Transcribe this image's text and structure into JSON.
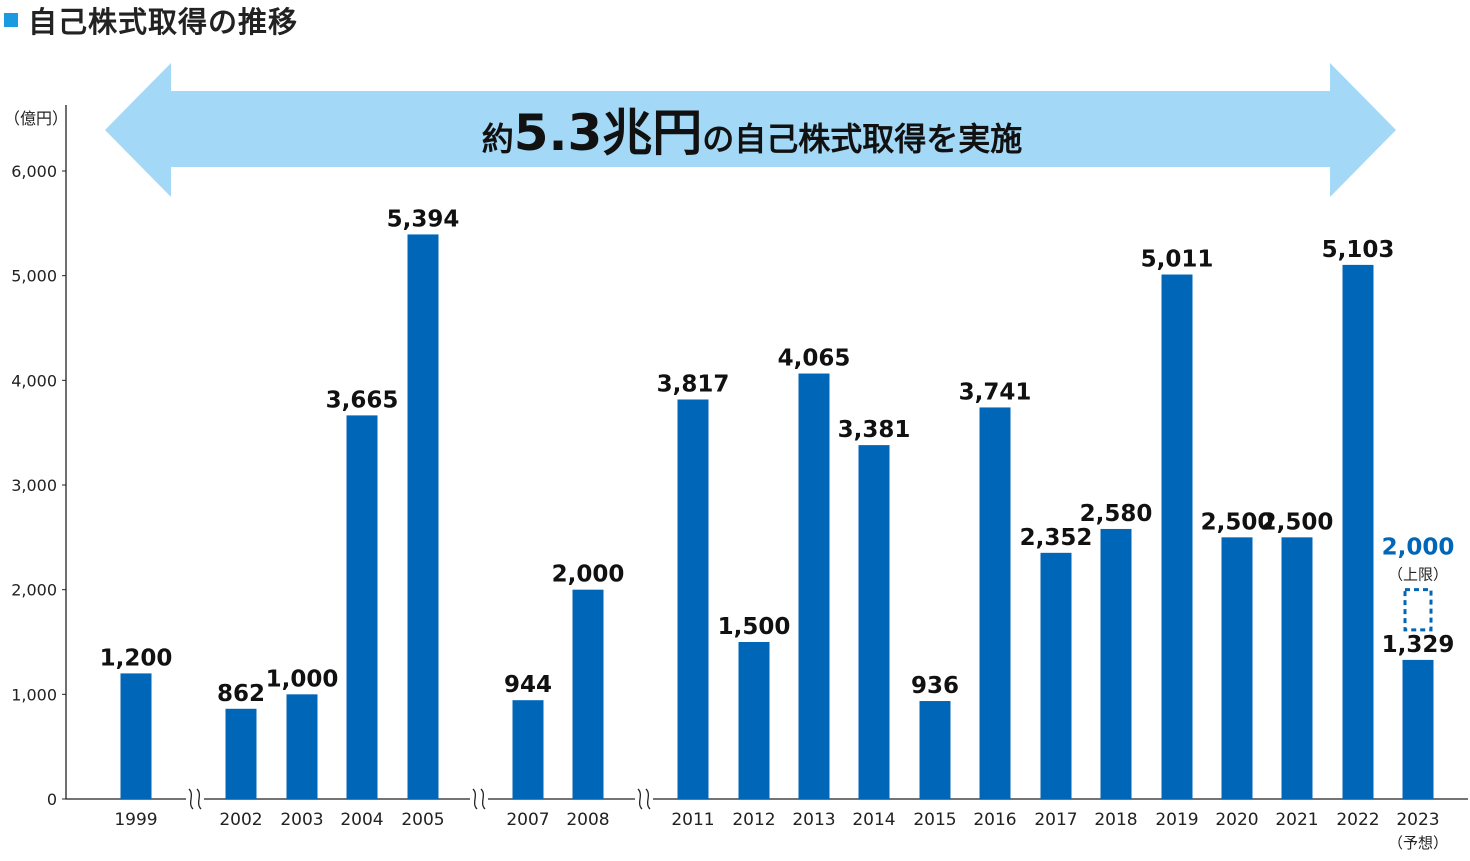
{
  "title": "自己株式取得の推移",
  "unit_label": "（億円）",
  "banner": {
    "prefix": "約",
    "amount": "5.3兆円",
    "suffix": "の自己株式取得を実施"
  },
  "colors": {
    "bar": "#0066b8",
    "accent": "#1a9ae0",
    "arrow": "#a3d8f6",
    "axis": "#222222"
  },
  "chart_data": {
    "type": "bar",
    "ylabel": "（億円）",
    "ylim": [
      0,
      6000
    ],
    "yticks": [
      "0",
      "1,000",
      "2,000",
      "3,000",
      "4,000",
      "5,000",
      "6,000"
    ],
    "categories": [
      "1999",
      "2002",
      "2003",
      "2004",
      "2005",
      "2007",
      "2008",
      "2011",
      "2012",
      "2013",
      "2014",
      "2015",
      "2016",
      "2017",
      "2018",
      "2019",
      "2020",
      "2021",
      "2022",
      "2023"
    ],
    "values": [
      1200,
      862,
      1000,
      3665,
      5394,
      944,
      2000,
      3817,
      1500,
      4065,
      3381,
      936,
      3741,
      2352,
      2580,
      5011,
      2500,
      2500,
      5103,
      1329
    ],
    "labels": [
      "1,200",
      "862",
      "1,000",
      "3,665",
      "5,394",
      "944",
      "2,000",
      "3,817",
      "1,500",
      "4,065",
      "3,381",
      "936",
      "3,741",
      "2,352",
      "2,580",
      "5,011",
      "2,500",
      "2,500",
      "5,103",
      "1,329"
    ],
    "axis_breaks_after": [
      "1999",
      "2005",
      "2008"
    ],
    "forecast": {
      "category": "2023",
      "category_note": "（予想）",
      "upper_limit": 2000,
      "upper_limit_label": "2,000",
      "upper_limit_note": "（上限）"
    }
  }
}
